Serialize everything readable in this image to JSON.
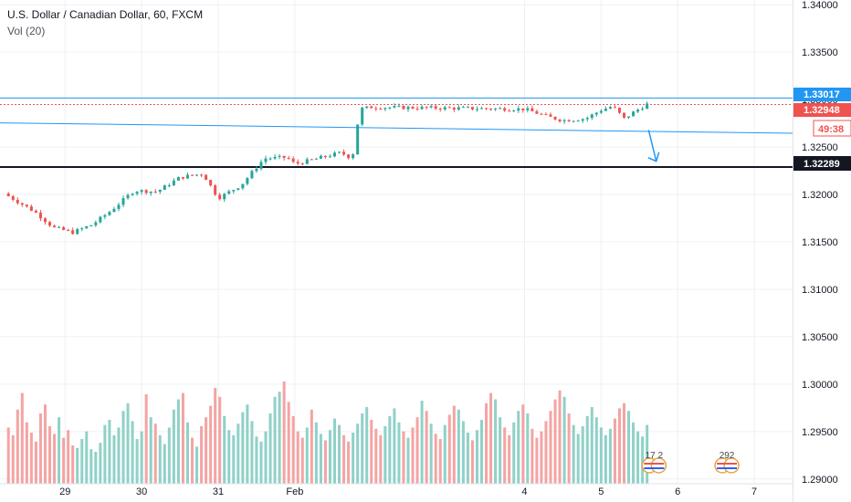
{
  "header": {
    "symbol_line": "U.S. Dollar / Canadian Dollar, 60, FXCM",
    "volume_line": "Vol (20)"
  },
  "colors": {
    "up": "#26a69a",
    "down": "#ef5350",
    "vol_up": "#8fd1c8",
    "vol_down": "#f4a4a3",
    "blue_line": "#2196f3",
    "support": "#131722",
    "grid": "#eef0f3"
  },
  "price_labels": {
    "top_line": "1.33017",
    "current": "1.32948",
    "countdown": "49:38",
    "support": "1.32289"
  },
  "event_badges": [
    {
      "icon": "us-flag-icon",
      "text": "17 2",
      "day": 5.68
    },
    {
      "icon": "us-flag-icon",
      "text": "292",
      "day": 6.63
    }
  ],
  "chart_data": {
    "type": "candlestick",
    "title": "U.S. Dollar / Canadian Dollar, 60, FXCM",
    "x_start_day": 28.15,
    "x_end_day": 7.5,
    "x_ticks": [
      {
        "label": "29",
        "day": 29
      },
      {
        "label": "30",
        "day": 30
      },
      {
        "label": "31",
        "day": 31
      },
      {
        "label": "Feb",
        "day": 1
      },
      {
        "label": "4",
        "day": 4
      },
      {
        "label": "5",
        "day": 5
      },
      {
        "label": "6",
        "day": 6
      },
      {
        "label": "7",
        "day": 7
      }
    ],
    "y_ticks": [
      "1.34000",
      "1.33500",
      "1.33000",
      "1.32500",
      "1.32000",
      "1.31500",
      "1.31000",
      "1.30500",
      "1.30000",
      "1.29500",
      "1.29000"
    ],
    "ylim": [
      1.2895,
      1.3405
    ],
    "close_path": [
      [
        28.2,
        1.3201
      ],
      [
        28.6,
        1.3182
      ],
      [
        28.85,
        1.3165
      ],
      [
        29.1,
        1.316
      ],
      [
        29.35,
        1.3168
      ],
      [
        29.6,
        1.3183
      ],
      [
        29.9,
        1.3204
      ],
      [
        30.2,
        1.3203
      ],
      [
        30.5,
        1.3218
      ],
      [
        30.8,
        1.3222
      ],
      [
        31.0,
        1.3196
      ],
      [
        31.3,
        1.321
      ],
      [
        31.6,
        1.3238
      ],
      [
        31.9,
        1.3239
      ],
      [
        1.0,
        1.3232
      ],
      [
        1.4,
        1.324
      ],
      [
        1.6,
        1.3244
      ],
      [
        1.75,
        1.3238
      ],
      [
        1.85,
        1.329
      ],
      [
        2.0,
        1.3292
      ],
      [
        4.0,
        1.329
      ],
      [
        4.3,
        1.3282
      ],
      [
        4.5,
        1.3278
      ],
      [
        4.8,
        1.328
      ],
      [
        5.0,
        1.3289
      ],
      [
        5.15,
        1.3293
      ],
      [
        5.3,
        1.328
      ],
      [
        5.45,
        1.3288
      ],
      [
        5.6,
        1.3295
      ]
    ],
    "volume_axis_max": 100,
    "volumes": [
      44,
      38,
      58,
      71,
      48,
      40,
      33,
      55,
      62,
      45,
      39,
      52,
      36,
      42,
      30,
      28,
      35,
      41,
      27,
      25,
      32,
      46,
      50,
      38,
      44,
      57,
      63,
      49,
      35,
      41,
      70,
      52,
      47,
      38,
      31,
      44,
      58,
      66,
      71,
      48,
      36,
      29,
      45,
      52,
      61,
      75,
      68,
      53,
      42,
      38,
      47,
      56,
      62,
      49,
      37,
      33,
      41,
      55,
      68,
      72,
      80,
      64,
      53,
      41,
      36,
      44,
      58,
      48,
      39,
      34,
      42,
      51,
      46,
      38,
      33,
      40,
      47,
      55,
      60,
      50,
      43,
      38,
      45,
      53,
      59,
      48,
      41,
      36,
      44,
      52,
      65,
      57,
      47,
      39,
      35,
      46,
      54,
      61,
      58,
      49,
      40,
      34,
      42,
      50,
      63,
      71,
      66,
      52,
      44,
      38,
      48,
      57,
      62,
      55,
      43,
      36,
      41,
      49,
      57,
      66,
      73,
      68,
      55,
      46,
      39,
      45,
      53,
      60,
      52,
      44,
      38,
      43,
      51,
      59,
      63,
      57,
      48,
      41,
      37,
      46
    ],
    "horizontal_levels": [
      {
        "price": 1.33017,
        "color": "#2196f3",
        "style": "solid"
      },
      {
        "price": 1.32948,
        "color": "#ef5350",
        "style": "dotted"
      },
      {
        "price": 1.32289,
        "color": "#131722",
        "style": "solid"
      }
    ],
    "trend_line": {
      "from": [
        28.15,
        1.32755
      ],
      "to": [
        7.5,
        1.32645
      ]
    },
    "arrow": {
      "from": [
        5.62,
        1.3268
      ],
      "to": [
        5.72,
        1.3235
      ]
    }
  }
}
